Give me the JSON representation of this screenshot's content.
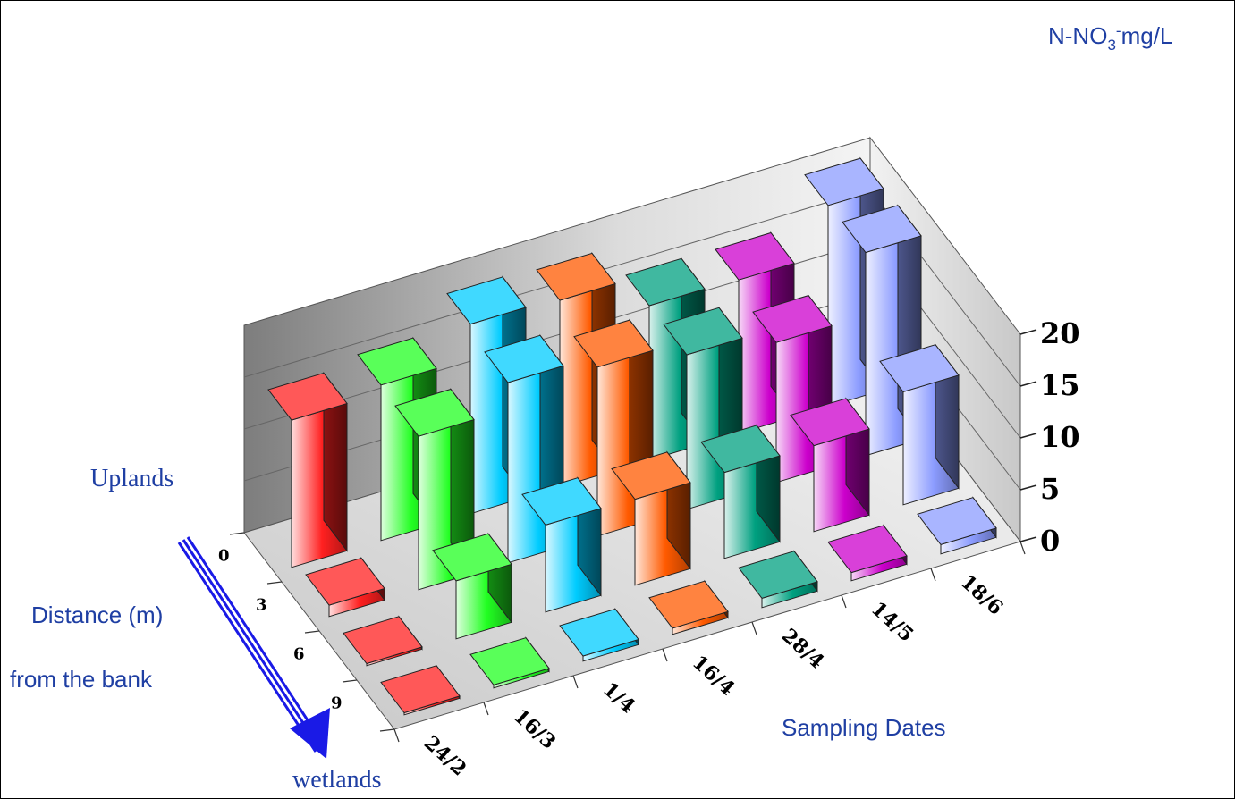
{
  "chart_data": {
    "type": "bar3d",
    "zlabel": "N-NO3-mg/L",
    "zlabel_parts": {
      "main": "N-NO",
      "sub": "3",
      "sup": "-",
      "unit": "mg/L"
    },
    "zlim": [
      0,
      20
    ],
    "z_ticks": [
      "0",
      "5",
      "10",
      "15",
      "20"
    ],
    "dates_label": "Sampling Dates",
    "dates": [
      "24/2",
      "16/3",
      "1/4",
      "16/4",
      "28/4",
      "14/5",
      "18/6"
    ],
    "distances": [
      "0",
      "3",
      "6",
      "9"
    ],
    "distance_title": "Distance (m)",
    "distance_subtitle": "from the bank",
    "top_annotation": "Uplands",
    "bottom_annotation": "wetlands",
    "grid": true,
    "values": [
      [
        14.2,
        1.1,
        0.2,
        0.2
      ],
      [
        15.0,
        14.8,
        5.6,
        0.3
      ],
      [
        18.3,
        17.4,
        8.4,
        0.5
      ],
      [
        18.0,
        16.3,
        8.3,
        0.6
      ],
      [
        14.9,
        14.9,
        8.3,
        0.9
      ],
      [
        14.8,
        13.5,
        8.3,
        0.8
      ],
      [
        19.4,
        19.6,
        10.9,
        0.9
      ]
    ],
    "colors": [
      "#ff2020",
      "#22ff22",
      "#00ccff",
      "#ff5a00",
      "#00a080",
      "#cc00cc",
      "#8c9cff"
    ]
  }
}
